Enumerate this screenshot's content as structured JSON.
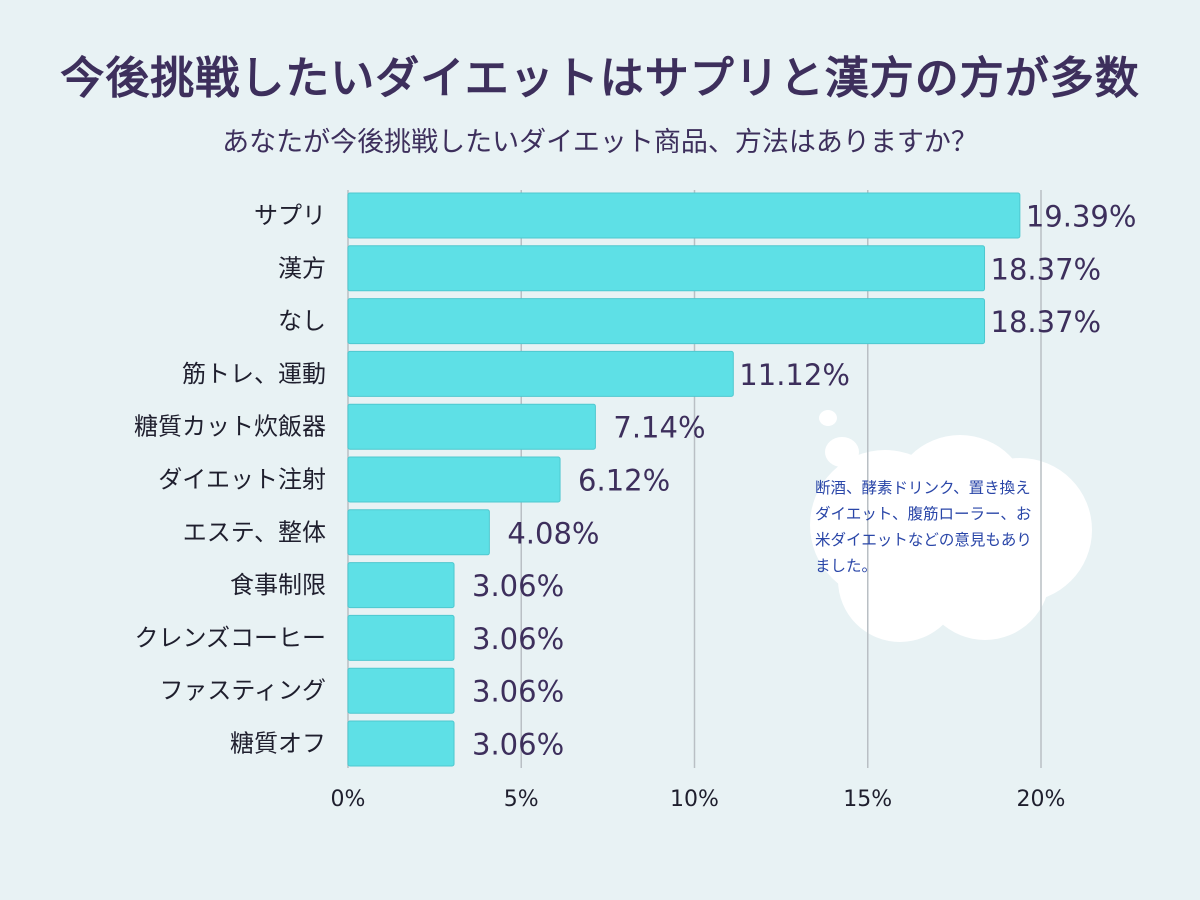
{
  "title": "今後挑戦したいダイエットはサプリと漢方の方が多数",
  "subtitle": "あなたが今後挑戦したいダイエット商品、方法はありますか？",
  "note": "断酒、酵素ドリンク、置き換えダイエット、腹筋ローラー、お米ダイエットなどの意見もありました。",
  "colors": {
    "background": "#e8f2f4",
    "bar": "#5ee0e6",
    "bar_stroke": "#4ec8cf",
    "text": "#3d2f5c",
    "note_text": "#2a46a8",
    "gridline": "#b9bfc4",
    "bubble": "#ffffff"
  },
  "chart_data": {
    "type": "bar",
    "orientation": "horizontal",
    "categories": [
      "サプリ",
      "漢方",
      "なし",
      "筋トレ、運動",
      "糖質カット炊飯器",
      "ダイエット注射",
      "エステ、整体",
      "食事制限",
      "クレンズコーヒー",
      "ファスティング",
      "糖質オフ"
    ],
    "values": [
      19.39,
      18.37,
      18.37,
      11.12,
      7.14,
      6.12,
      4.08,
      3.06,
      3.06,
      3.06,
      3.06
    ],
    "value_labels": [
      "19.39%",
      "18.37%",
      "18.37%",
      "11.12%",
      "7.14%",
      "6.12%",
      "4.08%",
      "3.06%",
      "3.06%",
      "3.06%",
      "3.06%"
    ],
    "xticks": [
      0,
      5,
      10,
      15,
      20
    ],
    "xtick_labels": [
      "0%",
      "5%",
      "10%",
      "15%",
      "20%"
    ],
    "xlim": [
      0,
      20
    ],
    "grid": true
  }
}
